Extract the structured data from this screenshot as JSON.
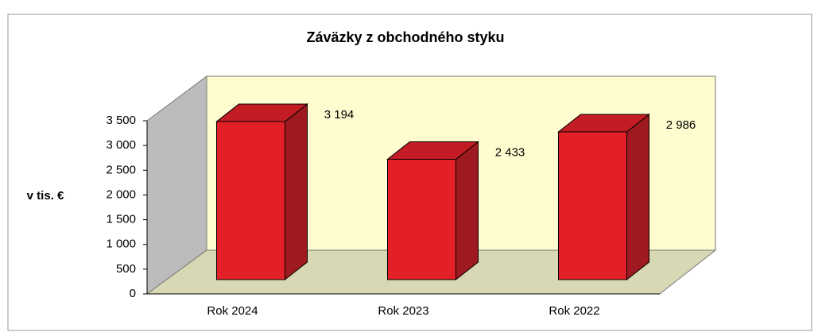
{
  "chart_data": {
    "type": "bar3d",
    "title": "Záväzky z obchodného styku",
    "ylabel": "v tis. €",
    "categories": [
      "Rok 2024",
      "Rok 2023",
      "Rok 2022"
    ],
    "values": [
      3194,
      2433,
      2986
    ],
    "value_labels": [
      "3 194",
      "2 433",
      "2 986"
    ],
    "color": "#e32028",
    "ylim": [
      0,
      3500
    ],
    "yticks": [
      0,
      500,
      {
        "value": 1000,
        "label": "1 000"
      },
      {
        "value": 1500,
        "label": "1 500"
      },
      {
        "value": 2000,
        "label": "2 000"
      },
      {
        "value": 2500,
        "label": "2 500"
      },
      {
        "value": 3000,
        "label": "3 000"
      },
      {
        "value": 3500,
        "label": "3 500"
      }
    ]
  }
}
